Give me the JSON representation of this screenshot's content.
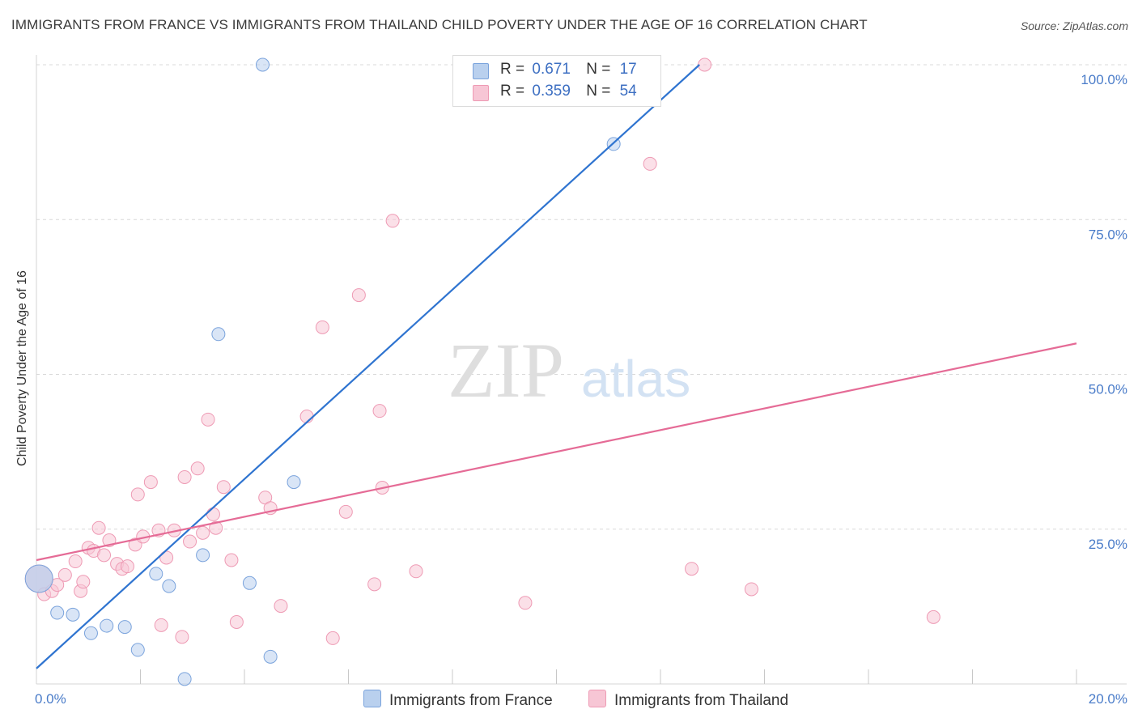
{
  "header": {
    "title": "IMMIGRANTS FROM FRANCE VS IMMIGRANTS FROM THAILAND CHILD POVERTY UNDER THE AGE OF 16 CORRELATION CHART",
    "source": "Source: ZipAtlas.com"
  },
  "watermark": {
    "zip": "ZIP",
    "atlas": "atlas"
  },
  "legend": {
    "france": {
      "r_label": "R =",
      "r_value": "0.671",
      "n_label": "N =",
      "n_value": "17"
    },
    "thailand": {
      "r_label": "R =",
      "r_value": "0.359",
      "n_label": "N =",
      "n_value": "54"
    }
  },
  "bottom_legend": {
    "france": "Immigrants from France",
    "thailand": "Immigrants from Thailand"
  },
  "colors": {
    "france_fill": "#b9d0ee",
    "france_stroke": "#7aa3dc",
    "france_line": "#2f74d0",
    "thailand_fill": "#f7c6d5",
    "thailand_stroke": "#ee9ab4",
    "thailand_line": "#e56b96",
    "tick_text": "#4a7cc9",
    "grid": "#d8d8d8"
  },
  "chart_data": {
    "type": "scatter",
    "title": "IMMIGRANTS FROM FRANCE VS IMMIGRANTS FROM THAILAND CHILD POVERTY UNDER THE AGE OF 16 CORRELATION CHART",
    "xlabel": "",
    "ylabel": "Child Poverty Under the Age of 16",
    "xlim": [
      0,
      20
    ],
    "ylim": [
      0,
      100
    ],
    "x_tick_labels": {
      "min": "0.0%",
      "max": "20.0%"
    },
    "y_ticks": [
      {
        "value": 25,
        "label": "25.0%"
      },
      {
        "value": 50,
        "label": "50.0%"
      },
      {
        "value": 75,
        "label": "75.0%"
      },
      {
        "value": 100,
        "label": "100.0%"
      }
    ],
    "series": [
      {
        "name": "Immigrants from France",
        "color": "#7aa3dc",
        "R": 0.671,
        "N": 17,
        "trendline": {
          "x": [
            0,
            12.75
          ],
          "y": [
            2.5,
            100
          ]
        },
        "points": [
          {
            "x": 0.05,
            "y": 17.0,
            "big": true
          },
          {
            "x": 0.4,
            "y": 11.5
          },
          {
            "x": 0.7,
            "y": 11.2
          },
          {
            "x": 1.05,
            "y": 8.2
          },
          {
            "x": 1.35,
            "y": 9.4
          },
          {
            "x": 1.7,
            "y": 9.2
          },
          {
            "x": 1.95,
            "y": 5.5
          },
          {
            "x": 2.3,
            "y": 17.8
          },
          {
            "x": 2.55,
            "y": 15.8
          },
          {
            "x": 2.85,
            "y": 0.8
          },
          {
            "x": 3.2,
            "y": 20.8
          },
          {
            "x": 3.5,
            "y": 56.5
          },
          {
            "x": 4.1,
            "y": 16.3
          },
          {
            "x": 4.5,
            "y": 4.4
          },
          {
            "x": 4.95,
            "y": 32.6
          },
          {
            "x": 4.35,
            "y": 100
          },
          {
            "x": 11.1,
            "y": 87.2
          }
        ]
      },
      {
        "name": "Immigrants from Thailand",
        "color": "#ee9ab4",
        "R": 0.359,
        "N": 54,
        "trendline": {
          "x": [
            0,
            20
          ],
          "y": [
            20,
            55
          ]
        },
        "points": [
          {
            "x": 0.05,
            "y": 17.0,
            "big": true
          },
          {
            "x": 0.15,
            "y": 14.5
          },
          {
            "x": 0.3,
            "y": 15.0
          },
          {
            "x": 0.4,
            "y": 16.0
          },
          {
            "x": 0.55,
            "y": 17.6
          },
          {
            "x": 0.75,
            "y": 19.8
          },
          {
            "x": 0.85,
            "y": 15.0
          },
          {
            "x": 0.9,
            "y": 16.5
          },
          {
            "x": 1.0,
            "y": 22.0
          },
          {
            "x": 1.1,
            "y": 21.5
          },
          {
            "x": 1.2,
            "y": 25.2
          },
          {
            "x": 1.3,
            "y": 20.8
          },
          {
            "x": 1.4,
            "y": 23.2
          },
          {
            "x": 1.55,
            "y": 19.4
          },
          {
            "x": 1.65,
            "y": 18.6
          },
          {
            "x": 1.75,
            "y": 19.0
          },
          {
            "x": 1.9,
            "y": 22.5
          },
          {
            "x": 1.95,
            "y": 30.6
          },
          {
            "x": 2.05,
            "y": 23.8
          },
          {
            "x": 2.2,
            "y": 32.6
          },
          {
            "x": 2.35,
            "y": 24.8
          },
          {
            "x": 2.4,
            "y": 9.5
          },
          {
            "x": 2.5,
            "y": 20.4
          },
          {
            "x": 2.65,
            "y": 24.8
          },
          {
            "x": 2.8,
            "y": 7.6
          },
          {
            "x": 2.85,
            "y": 33.4
          },
          {
            "x": 2.95,
            "y": 23.0
          },
          {
            "x": 3.1,
            "y": 34.8
          },
          {
            "x": 3.2,
            "y": 24.4
          },
          {
            "x": 3.3,
            "y": 42.7
          },
          {
            "x": 3.4,
            "y": 27.4
          },
          {
            "x": 3.45,
            "y": 25.2
          },
          {
            "x": 3.6,
            "y": 31.8
          },
          {
            "x": 3.75,
            "y": 20.0
          },
          {
            "x": 3.85,
            "y": 10.0
          },
          {
            "x": 4.4,
            "y": 30.1
          },
          {
            "x": 4.5,
            "y": 28.4
          },
          {
            "x": 4.7,
            "y": 12.6
          },
          {
            "x": 5.2,
            "y": 43.2
          },
          {
            "x": 5.5,
            "y": 57.6
          },
          {
            "x": 5.7,
            "y": 7.4
          },
          {
            "x": 5.95,
            "y": 27.8
          },
          {
            "x": 6.2,
            "y": 62.8
          },
          {
            "x": 6.5,
            "y": 16.1
          },
          {
            "x": 6.6,
            "y": 44.1
          },
          {
            "x": 6.65,
            "y": 31.7
          },
          {
            "x": 6.85,
            "y": 74.8
          },
          {
            "x": 7.3,
            "y": 18.2
          },
          {
            "x": 9.4,
            "y": 13.1
          },
          {
            "x": 11.8,
            "y": 84.0
          },
          {
            "x": 12.85,
            "y": 100
          },
          {
            "x": 12.6,
            "y": 18.6
          },
          {
            "x": 13.75,
            "y": 15.3
          },
          {
            "x": 17.25,
            "y": 10.8
          }
        ]
      }
    ]
  }
}
